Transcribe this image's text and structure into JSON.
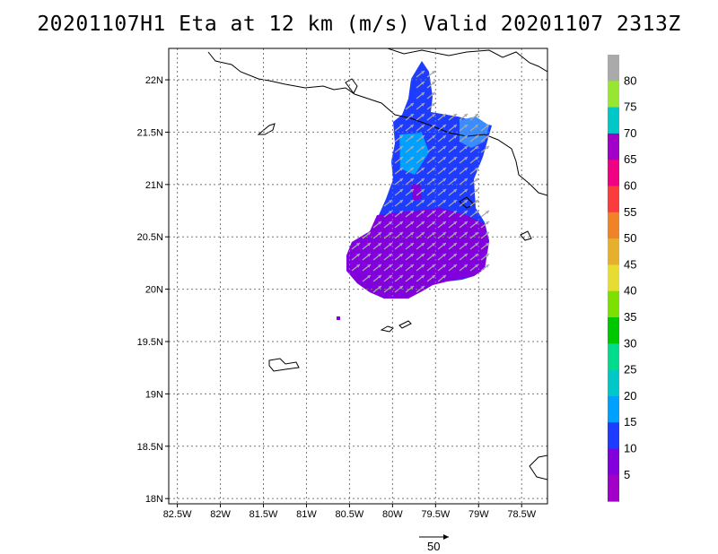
{
  "title": "20201107H1 Eta at 12 km (m/s) Valid 20201107 2313Z",
  "map": {
    "lon_range": [
      -82.6,
      -78.2
    ],
    "lat_range": [
      17.95,
      22.3
    ],
    "lon_ticks": [
      "82.5W",
      "82W",
      "81.5W",
      "81W",
      "80.5W",
      "80W",
      "79.5W",
      "79W",
      "78.5W"
    ],
    "lon_tick_values": [
      -82.5,
      -82,
      -81.5,
      -81,
      -80.5,
      -80,
      -79.5,
      -79,
      -78.5
    ],
    "lat_ticks": [
      "22N",
      "21.5N",
      "21N",
      "20.5N",
      "20N",
      "19.5N",
      "19N",
      "18.5N",
      "18N"
    ],
    "lat_tick_values": [
      22,
      21.5,
      21,
      20.5,
      20,
      19.5,
      19,
      18.5,
      18
    ],
    "grid": true,
    "vector_reference": {
      "label": "50",
      "value": 50
    }
  },
  "colorbar": {
    "labels": [
      "5",
      "10",
      "15",
      "20",
      "25",
      "30",
      "35",
      "40",
      "45",
      "50",
      "55",
      "60",
      "65",
      "70",
      "75",
      "80"
    ],
    "colors": [
      "#a000c8",
      "#8200dc",
      "#1e3cff",
      "#00a0ff",
      "#00c8c8",
      "#00dc8c",
      "#00c800",
      "#7ce100",
      "#e6dc32",
      "#e6af2d",
      "#f08228",
      "#fa3c3c",
      "#f00082",
      "#a000c8",
      "#00c8c8",
      "#96e632",
      "#aaaaaa"
    ]
  }
}
